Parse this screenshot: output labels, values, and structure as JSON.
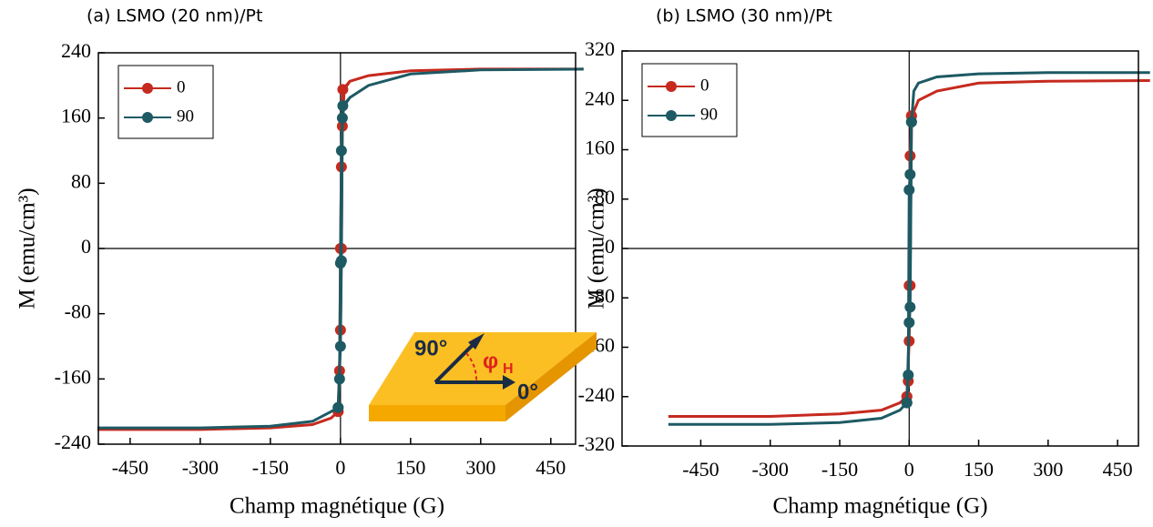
{
  "chart_data": [
    {
      "type": "line",
      "title": "(a) LSMO (20 nm)/Pt",
      "xlabel": "Champ magnétique (G)",
      "ylabel": "M (emu/cm³)",
      "x": [
        520,
        300,
        150,
        60,
        20,
        8,
        4,
        2,
        0,
        -5,
        -20,
        -60,
        -150,
        -300,
        -520,
        -300,
        -150,
        -60,
        -20,
        -5,
        -2,
        0,
        2,
        5,
        20,
        60,
        150,
        300,
        520
      ],
      "series": [
        {
          "name": "0",
          "color": "#c62a1e",
          "values": [
            220,
            220,
            218,
            212,
            205,
            195,
            150,
            0,
            -100,
            -200,
            -208,
            -216,
            -220,
            -222,
            -222,
            -222,
            -220,
            -216,
            -208,
            -200,
            -150,
            0,
            100,
            195,
            205,
            212,
            218,
            220,
            220
          ]
        },
        {
          "name": "90",
          "color": "#1d5a64",
          "values": [
            220,
            219,
            214,
            200,
            185,
            175,
            160,
            -15,
            -120,
            -195,
            -200,
            -212,
            -218,
            -220,
            -220,
            -220,
            -218,
            -212,
            -200,
            -195,
            -160,
            -18,
            120,
            175,
            185,
            200,
            214,
            219,
            220
          ]
        }
      ],
      "xlim": [
        -518,
        503
      ],
      "ylim": [
        -240,
        240
      ],
      "xticks": [
        -450,
        -300,
        -150,
        0,
        150,
        300,
        450
      ],
      "yticks": [
        -240,
        -160,
        -80,
        0,
        80,
        160,
        240
      ],
      "zero_lines": true,
      "legend": "upper left",
      "annotations": [
        "90°",
        "φ",
        "H",
        "0°"
      ]
    },
    {
      "type": "line",
      "title": "(b) LSMO (30 nm)/Pt",
      "xlabel": "Champ magnétique (G)",
      "ylabel": "M (emu/cm³)",
      "x": [
        520,
        300,
        150,
        60,
        20,
        10,
        5,
        2,
        0,
        -5,
        -20,
        -60,
        -150,
        -300,
        -520,
        -300,
        -150,
        -60,
        -20,
        -5,
        -2,
        0,
        2,
        5,
        10,
        20,
        60,
        150,
        300,
        520
      ],
      "series": [
        {
          "name": "0",
          "color": "#c62a1e",
          "values": [
            272,
            271,
            268,
            255,
            240,
            222,
            215,
            -60,
            -150,
            -240,
            -250,
            -262,
            -268,
            -272,
            -272,
            -272,
            -268,
            -262,
            -250,
            -240,
            -215,
            -60,
            150,
            215,
            222,
            240,
            255,
            268,
            271,
            272
          ]
        },
        {
          "name": "90",
          "color": "#1d5a64",
          "values": [
            285,
            285,
            283,
            278,
            268,
            255,
            205,
            -95,
            -120,
            -250,
            -262,
            -275,
            -282,
            -285,
            -285,
            -285,
            -282,
            -275,
            -262,
            -250,
            -205,
            95,
            120,
            205,
            255,
            268,
            278,
            283,
            285,
            285
          ]
        }
      ],
      "xlim": [
        -620,
        495
      ],
      "ylim": [
        -320,
        320
      ],
      "xticks": [
        -450,
        -300,
        -150,
        0,
        150,
        300,
        450
      ],
      "yticks": [
        -320,
        -240,
        -160,
        -80,
        0,
        80,
        160,
        240,
        320
      ],
      "zero_lines": true,
      "legend": "upper left"
    }
  ]
}
